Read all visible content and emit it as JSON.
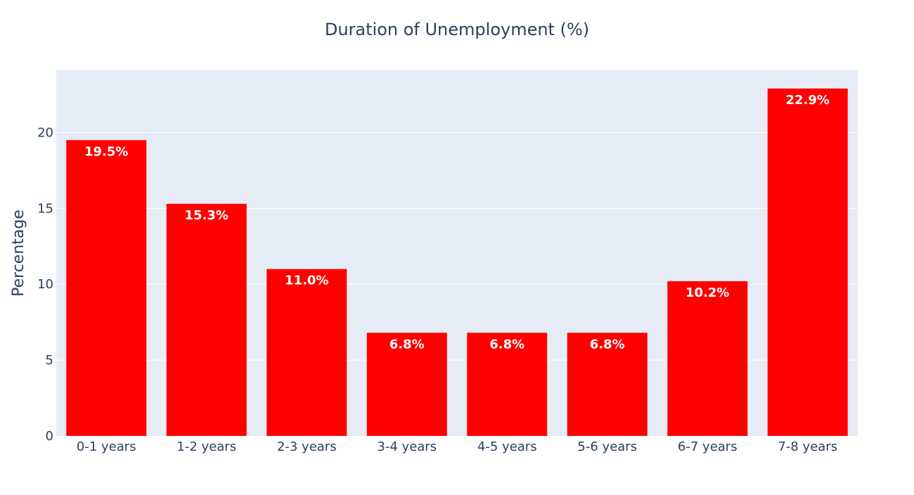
{
  "chart_data": {
    "type": "bar",
    "title": "Duration of Unemployment (%)",
    "xlabel": "",
    "ylabel": "Percentage",
    "categories": [
      "0-1 years",
      "1-2 years",
      "2-3 years",
      "3-4 years",
      "4-5 years",
      "5-6 years",
      "6-7 years",
      "7-8 years"
    ],
    "values": [
      19.5,
      15.3,
      11.0,
      6.8,
      6.8,
      6.8,
      10.2,
      22.9
    ],
    "data_labels": [
      "19.5%",
      "15.3%",
      "11.0%",
      "6.8%",
      "6.8%",
      "6.8%",
      "10.2%",
      "22.9%"
    ],
    "yticks": [
      0,
      5,
      10,
      15,
      20
    ],
    "ylim": [
      0,
      24.1
    ],
    "grid": true,
    "legend": "none",
    "colors": {
      "bar": "#ff0000",
      "plot_bg": "#e5ecf6",
      "grid": "#ffffff",
      "text": "#2a3f5f"
    }
  }
}
